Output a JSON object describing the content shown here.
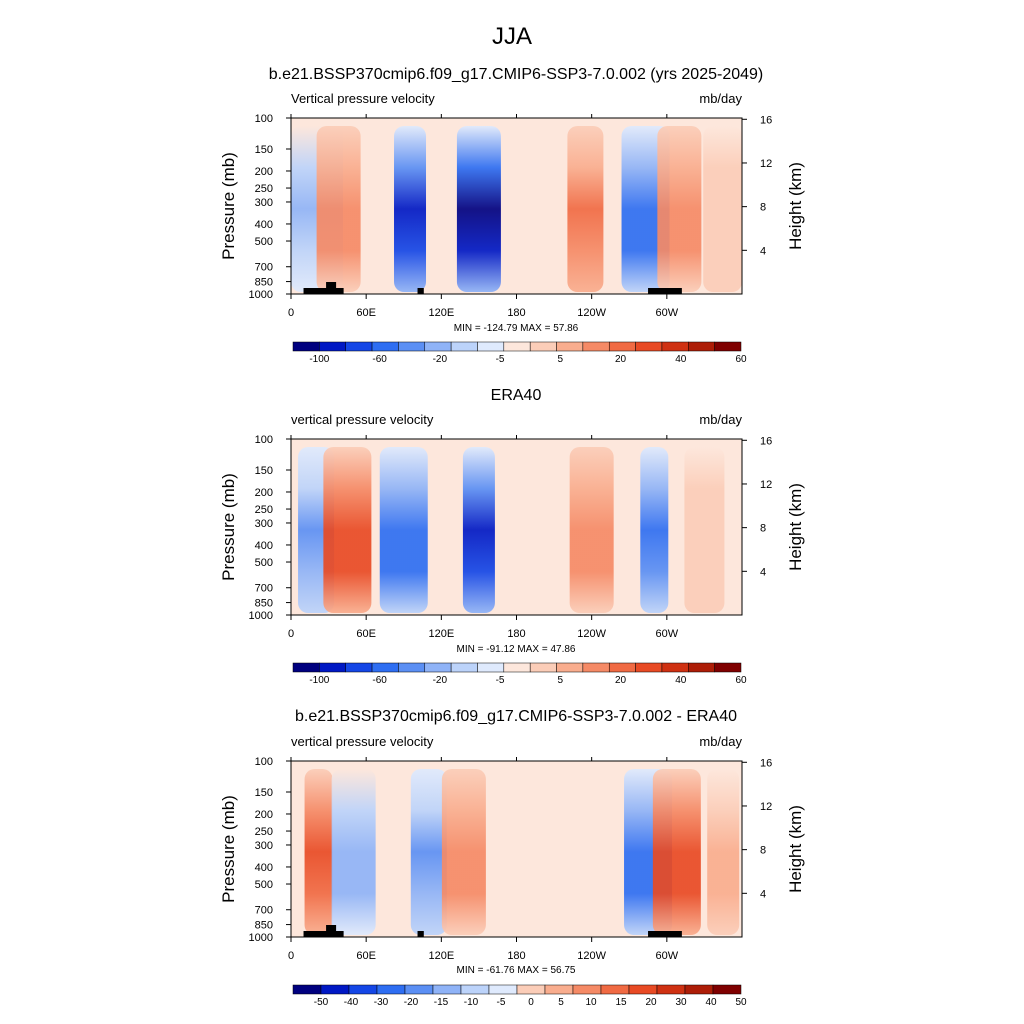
{
  "page_title": "JJA",
  "colors": {
    "diverging_palette": [
      "#00007f",
      "#0018c4",
      "#1446e6",
      "#2e6ef2",
      "#5b8ff4",
      "#8fb3f7",
      "#bcd3fa",
      "#dfeafd",
      "#fde7dc",
      "#fbcdb8",
      "#f9ad8e",
      "#f58a66",
      "#f06a43",
      "#e84a24",
      "#cf3112",
      "#ad1d07",
      "#7f0000"
    ]
  },
  "panels": [
    {
      "id": "model",
      "title": "b.e21.BSSP370cmip6.f09_g17.CMIP6-SSP3-7.0.002 (yrs 2025-2049)",
      "left_label": "Vertical pressure velocity",
      "units": "mb/day",
      "ylabel": "Pressure (mb)",
      "ylabel_right": "Height (km)",
      "pressure_ticks": [
        "100",
        "150",
        "200",
        "250",
        "300",
        "400",
        "500",
        "700",
        "850",
        "1000"
      ],
      "height_ticks": [
        "4",
        "8",
        "12",
        "16"
      ],
      "x_ticks": [
        "0",
        "60E",
        "120E",
        "180",
        "120W",
        "60W"
      ],
      "stats": "MIN = -124.79  MAX =  57.86",
      "colorbar_labels": [
        "-100",
        "-60",
        "-20",
        "-5",
        "5",
        "20",
        "40",
        "60"
      ],
      "topography": true
    },
    {
      "id": "obs",
      "title": "ERA40",
      "left_label": "vertical pressure velocity",
      "units": "mb/day",
      "ylabel": "Pressure (mb)",
      "ylabel_right": "Height (km)",
      "pressure_ticks": [
        "100",
        "150",
        "200",
        "250",
        "300",
        "400",
        "500",
        "700",
        "850",
        "1000"
      ],
      "height_ticks": [
        "4",
        "8",
        "12",
        "16"
      ],
      "x_ticks": [
        "0",
        "60E",
        "120E",
        "180",
        "120W",
        "60W"
      ],
      "stats": "MIN = -91.12  MAX =  47.86",
      "colorbar_labels": [
        "-100",
        "-60",
        "-20",
        "-5",
        "5",
        "20",
        "40",
        "60"
      ],
      "topography": false
    },
    {
      "id": "diff",
      "title": "b.e21.BSSP370cmip6.f09_g17.CMIP6-SSP3-7.0.002 - ERA40",
      "left_label": "vertical pressure velocity",
      "units": "mb/day",
      "ylabel": "Pressure (mb)",
      "ylabel_right": "Height (km)",
      "pressure_ticks": [
        "100",
        "150",
        "200",
        "250",
        "300",
        "400",
        "500",
        "700",
        "850",
        "1000"
      ],
      "height_ticks": [
        "4",
        "8",
        "12",
        "16"
      ],
      "x_ticks": [
        "0",
        "60E",
        "120E",
        "180",
        "120W",
        "60W"
      ],
      "stats": "MIN = -61.76  MAX =  56.75",
      "colorbar_labels": [
        "-50",
        "-40",
        "-30",
        "-20",
        "-15",
        "-10",
        "-5",
        "0",
        "5",
        "10",
        "15",
        "20",
        "30",
        "40",
        "50"
      ],
      "topography": true
    }
  ],
  "chart_data": [
    {
      "type": "heatmap",
      "title": "b.e21.BSSP370cmip6.f09_g17.CMIP6-SSP3-7.0.002 (yrs 2025-2049)",
      "variable": "Vertical pressure velocity",
      "units": "mb/day",
      "min": -124.79,
      "max": 57.86,
      "xlim": [
        0,
        360
      ],
      "ylim": [
        1000,
        100
      ],
      "y_scale": "log",
      "grid": false,
      "features": [
        {
          "lon_center": 10,
          "sign": -1,
          "magnitude": 20
        },
        {
          "lon_center": 38,
          "sign": 1,
          "magnitude": 25
        },
        {
          "lon_center": 95,
          "sign": -1,
          "magnitude": 50
        },
        {
          "lon_center": 150,
          "sign": -1,
          "magnitude": 60
        },
        {
          "lon_center": 235,
          "sign": 1,
          "magnitude": 30
        },
        {
          "lon_center": 283,
          "sign": -1,
          "magnitude": 40
        },
        {
          "lon_center": 310,
          "sign": 1,
          "magnitude": 25
        },
        {
          "lon_center": 345,
          "sign": 1,
          "magnitude": 10
        }
      ]
    },
    {
      "type": "heatmap",
      "title": "ERA40",
      "variable": "vertical pressure velocity",
      "units": "mb/day",
      "min": -91.12,
      "max": 47.86,
      "xlim": [
        0,
        360
      ],
      "ylim": [
        1000,
        100
      ],
      "y_scale": "log",
      "grid": false,
      "features": [
        {
          "lon_center": 20,
          "sign": -1,
          "magnitude": 30
        },
        {
          "lon_center": 45,
          "sign": 1,
          "magnitude": 40
        },
        {
          "lon_center": 90,
          "sign": -1,
          "magnitude": 40
        },
        {
          "lon_center": 150,
          "sign": -1,
          "magnitude": 50
        },
        {
          "lon_center": 240,
          "sign": 1,
          "magnitude": 25
        },
        {
          "lon_center": 290,
          "sign": -1,
          "magnitude": 35
        },
        {
          "lon_center": 330,
          "sign": 1,
          "magnitude": 10
        }
      ]
    },
    {
      "type": "heatmap",
      "title": "b.e21.BSSP370cmip6.f09_g17.CMIP6-SSP3-7.0.002 - ERA40",
      "variable": "vertical pressure velocity",
      "units": "mb/day",
      "min": -61.76,
      "max": 56.75,
      "xlim": [
        0,
        360
      ],
      "ylim": [
        1000,
        100
      ],
      "y_scale": "log",
      "grid": false,
      "features": [
        {
          "lon_center": 22,
          "sign": 1,
          "magnitude": 35
        },
        {
          "lon_center": 50,
          "sign": -1,
          "magnitude": 25
        },
        {
          "lon_center": 110,
          "sign": -1,
          "magnitude": 30
        },
        {
          "lon_center": 138,
          "sign": 1,
          "magnitude": 25
        },
        {
          "lon_center": 285,
          "sign": -1,
          "magnitude": 40
        },
        {
          "lon_center": 308,
          "sign": 1,
          "magnitude": 40
        },
        {
          "lon_center": 345,
          "sign": 1,
          "magnitude": 15
        }
      ]
    }
  ]
}
